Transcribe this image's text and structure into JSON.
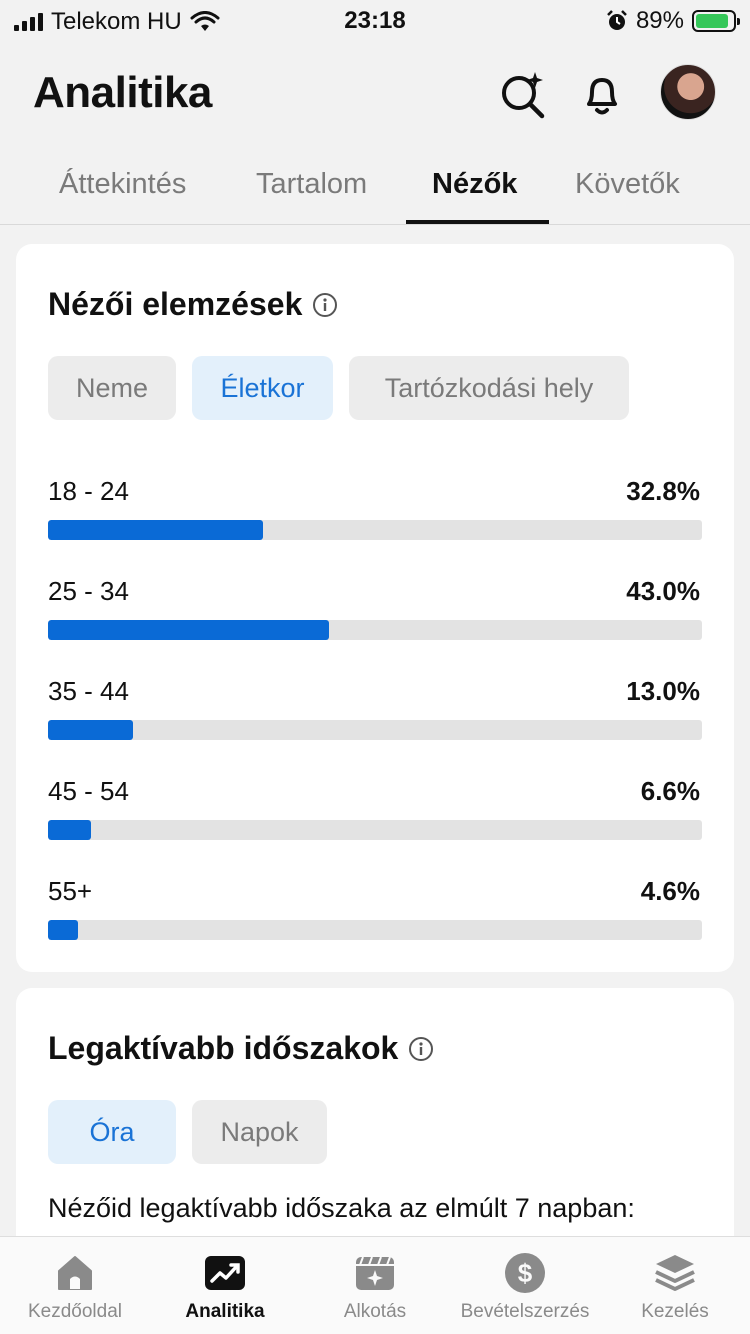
{
  "status_bar": {
    "carrier": "Telekom HU",
    "time": "23:18",
    "battery": "89%"
  },
  "header": {
    "title": "Analitika"
  },
  "tabs": [
    {
      "label": "Áttekintés",
      "active": false
    },
    {
      "label": "Tartalom",
      "active": false
    },
    {
      "label": "Nézők",
      "active": true
    },
    {
      "label": "Követők",
      "active": false
    }
  ],
  "viewer_insights": {
    "title": "Nézői elemzések",
    "filters": [
      {
        "label": "Neme",
        "active": false
      },
      {
        "label": "Életkor",
        "active": true
      },
      {
        "label": "Tartózkodási hely",
        "active": false
      }
    ],
    "rows": [
      {
        "label": "18 - 24",
        "value": "32.8%",
        "fraction": 0.328
      },
      {
        "label": "25 - 34",
        "value": "43.0%",
        "fraction": 0.43
      },
      {
        "label": "35 - 44",
        "value": "13.0%",
        "fraction": 0.13
      },
      {
        "label": "45 - 54",
        "value": "6.6%",
        "fraction": 0.066
      },
      {
        "label": "55+",
        "value": "4.6%",
        "fraction": 0.046
      }
    ]
  },
  "active_times": {
    "title": "Legaktívabb időszakok",
    "filters": [
      {
        "label": "Óra",
        "active": true
      },
      {
        "label": "Napok",
        "active": false
      }
    ],
    "summary": "Nézőid legaktívabb időszaka az elmúlt 7 napban:"
  },
  "bottom_nav": [
    {
      "label": "Kezdőoldal",
      "icon": "home-icon",
      "active": false
    },
    {
      "label": "Analitika",
      "icon": "analytics-icon",
      "active": true
    },
    {
      "label": "Alkotás",
      "icon": "create-icon",
      "active": false
    },
    {
      "label": "Bevételszerzés",
      "icon": "dollar-icon",
      "active": false
    },
    {
      "label": "Kezelés",
      "icon": "layers-icon",
      "active": false
    }
  ],
  "colors": {
    "accent": "#0a6ad6",
    "accent_chip_bg": "#e3f0fb",
    "battery_green": "#35c759"
  }
}
